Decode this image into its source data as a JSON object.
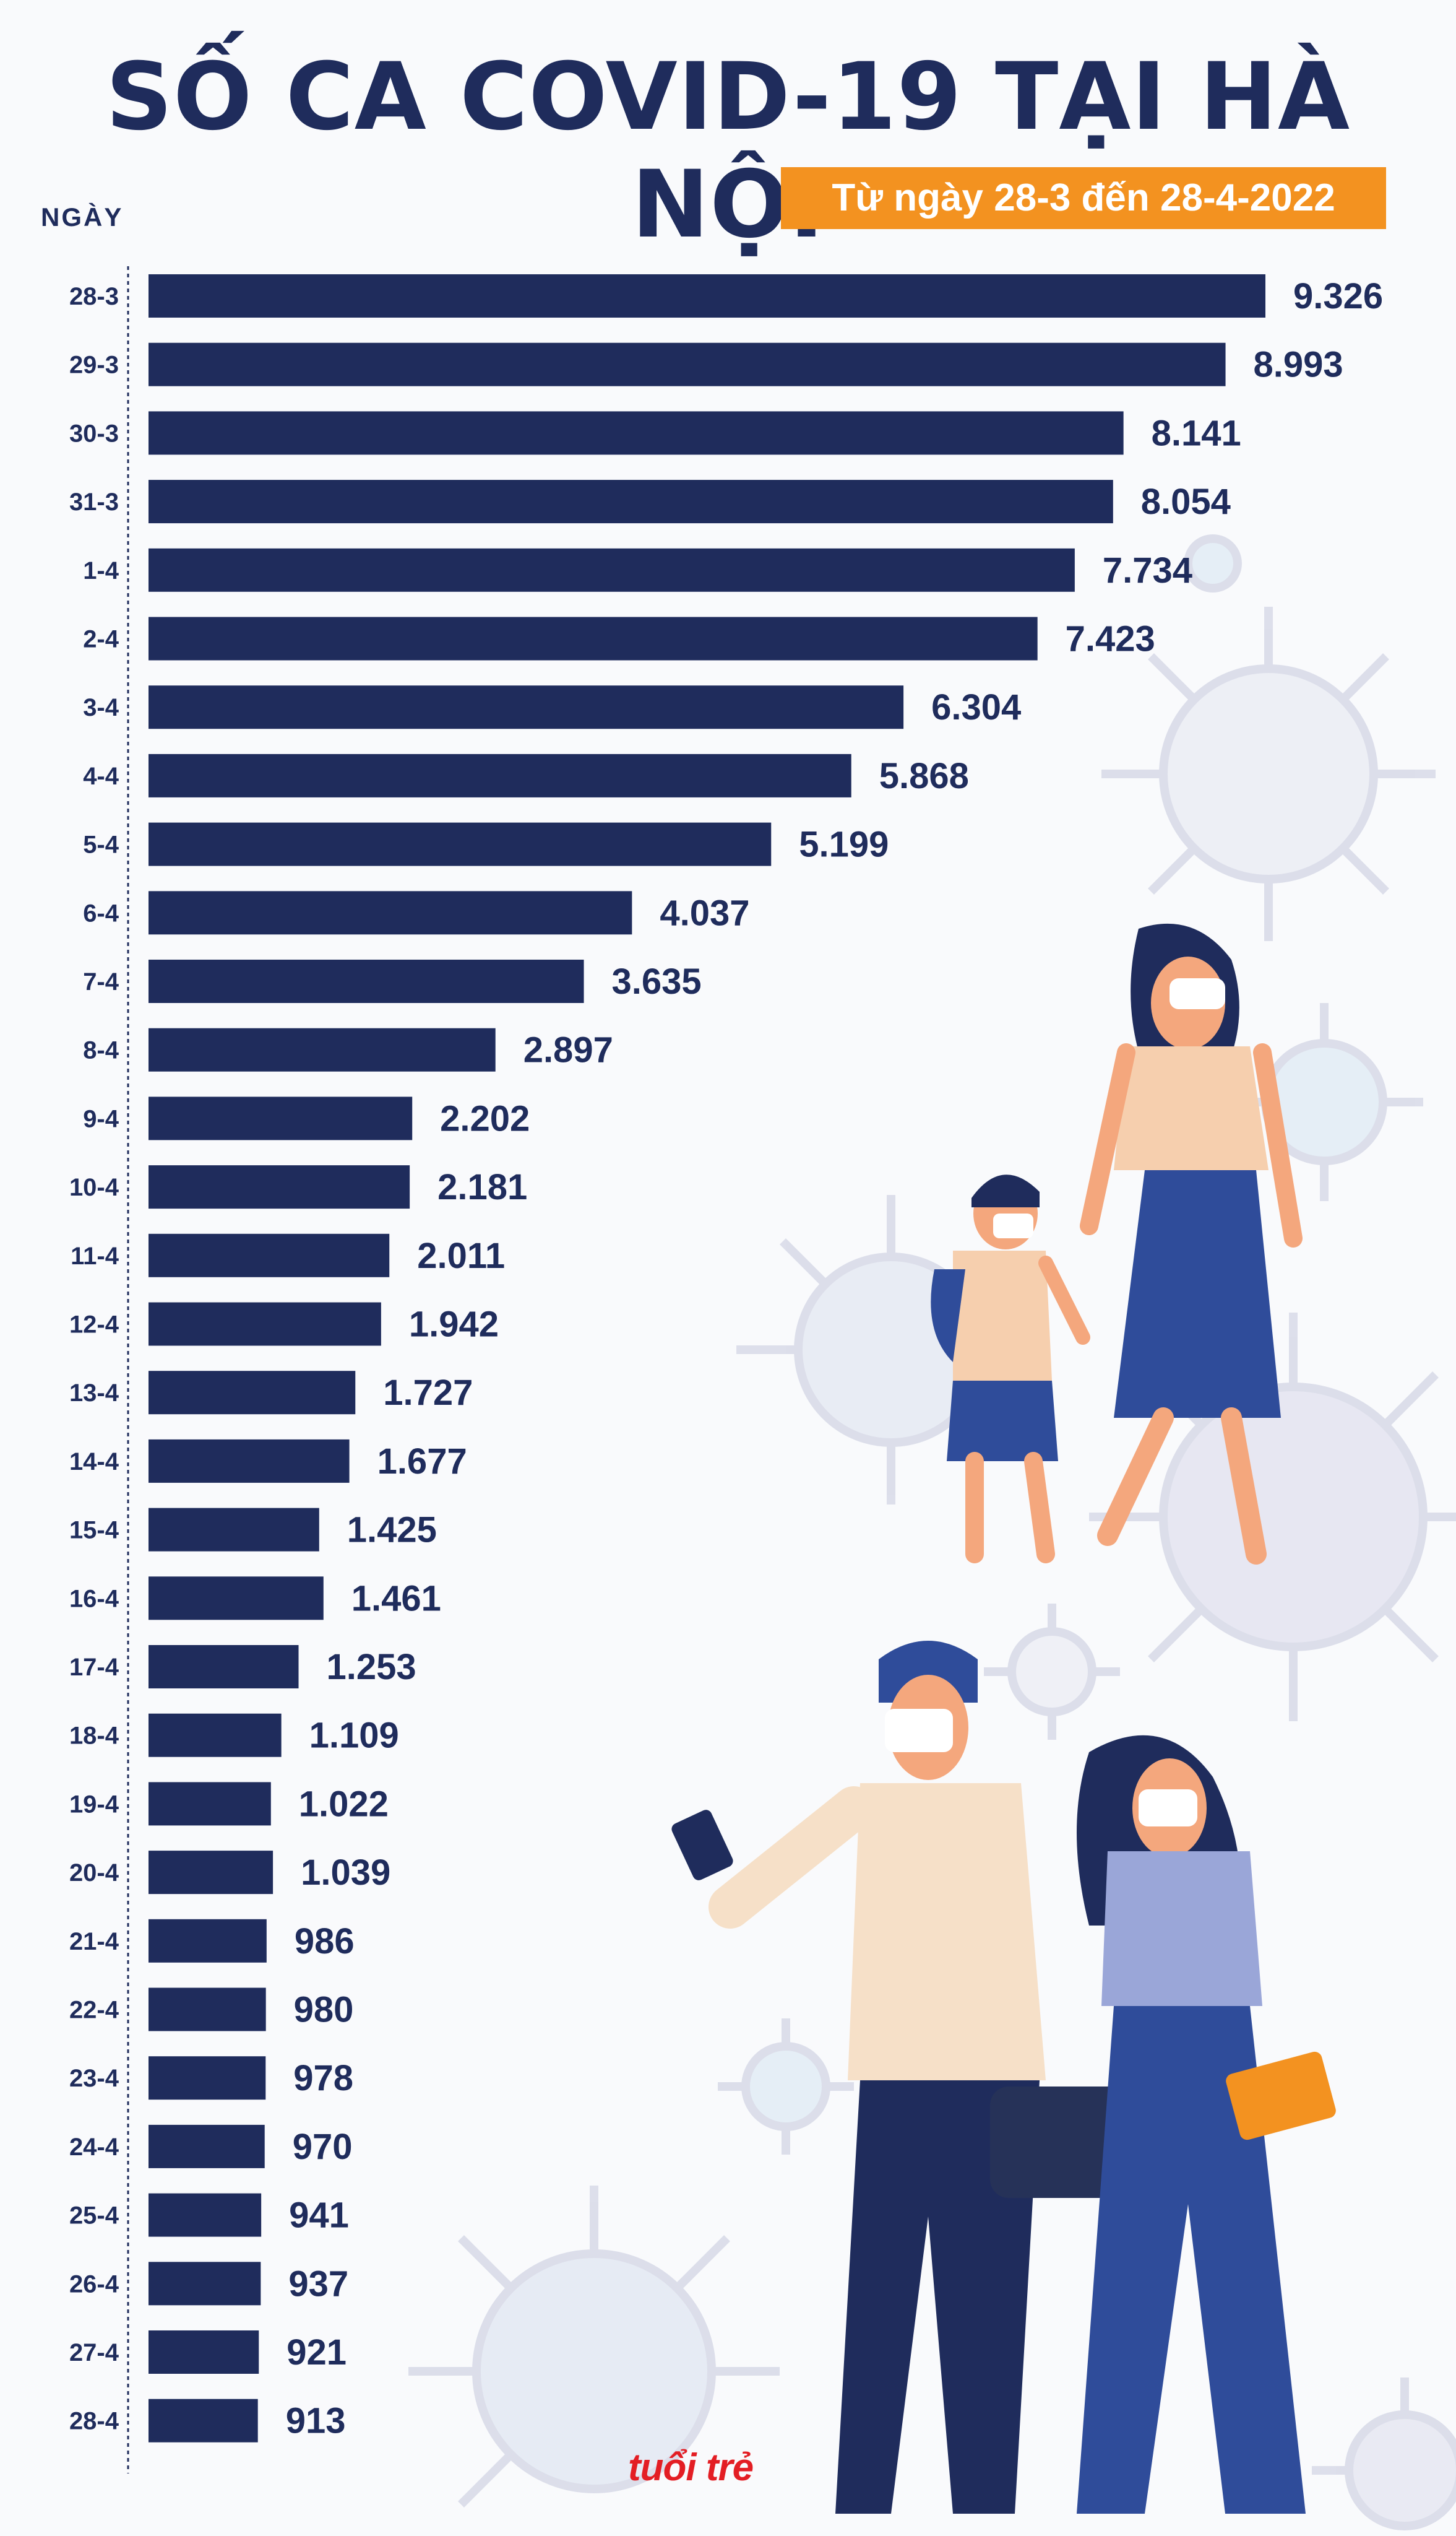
{
  "header": {
    "title": "SỐ CA COVID-19 TẠI HÀ NỘI",
    "subtitle": "Từ ngày 28-3 đến 28-4-2022",
    "axis_label": "NGÀY"
  },
  "logo": {
    "text": "tuổi trẻ"
  },
  "colors": {
    "bar": "#1f2c5c",
    "accent": "#f39220",
    "background": "#f9fafc"
  },
  "chart_data": {
    "type": "bar",
    "orientation": "horizontal",
    "title": "SỐ CA COVID-19 TẠI HÀ NỘI",
    "subtitle": "Từ ngày 28-3 đến 28-4-2022",
    "ylabel": "NGÀY",
    "categories": [
      "28-3",
      "29-3",
      "30-3",
      "31-3",
      "1-4",
      "2-4",
      "3-4",
      "4-4",
      "5-4",
      "6-4",
      "7-4",
      "8-4",
      "9-4",
      "10-4",
      "11-4",
      "12-4",
      "13-4",
      "14-4",
      "15-4",
      "16-4",
      "17-4",
      "18-4",
      "19-4",
      "20-4",
      "21-4",
      "22-4",
      "23-4",
      "24-4",
      "25-4",
      "26-4",
      "27-4",
      "28-4"
    ],
    "values": [
      9326,
      8993,
      8141,
      8054,
      7734,
      7423,
      6304,
      5868,
      5199,
      4037,
      3635,
      2897,
      2202,
      2181,
      2011,
      1942,
      1727,
      1677,
      1425,
      1461,
      1253,
      1109,
      1022,
      1039,
      986,
      980,
      978,
      970,
      941,
      937,
      921,
      913
    ],
    "labels": [
      "9.326",
      "8.993",
      "8.141",
      "8.054",
      "7.734",
      "7.423",
      "6.304",
      "5.868",
      "5.199",
      "4.037",
      "3.635",
      "2.897",
      "2.202",
      "2.181",
      "2.011",
      "1.942",
      "1.727",
      "1.677",
      "1.425",
      "1.461",
      "1.253",
      "1.109",
      "1.022",
      "1.039",
      "986",
      "980",
      "978",
      "970",
      "941",
      "937",
      "921",
      "913"
    ],
    "xlim": [
      0,
      9326
    ],
    "grid": false,
    "legend": "none"
  }
}
